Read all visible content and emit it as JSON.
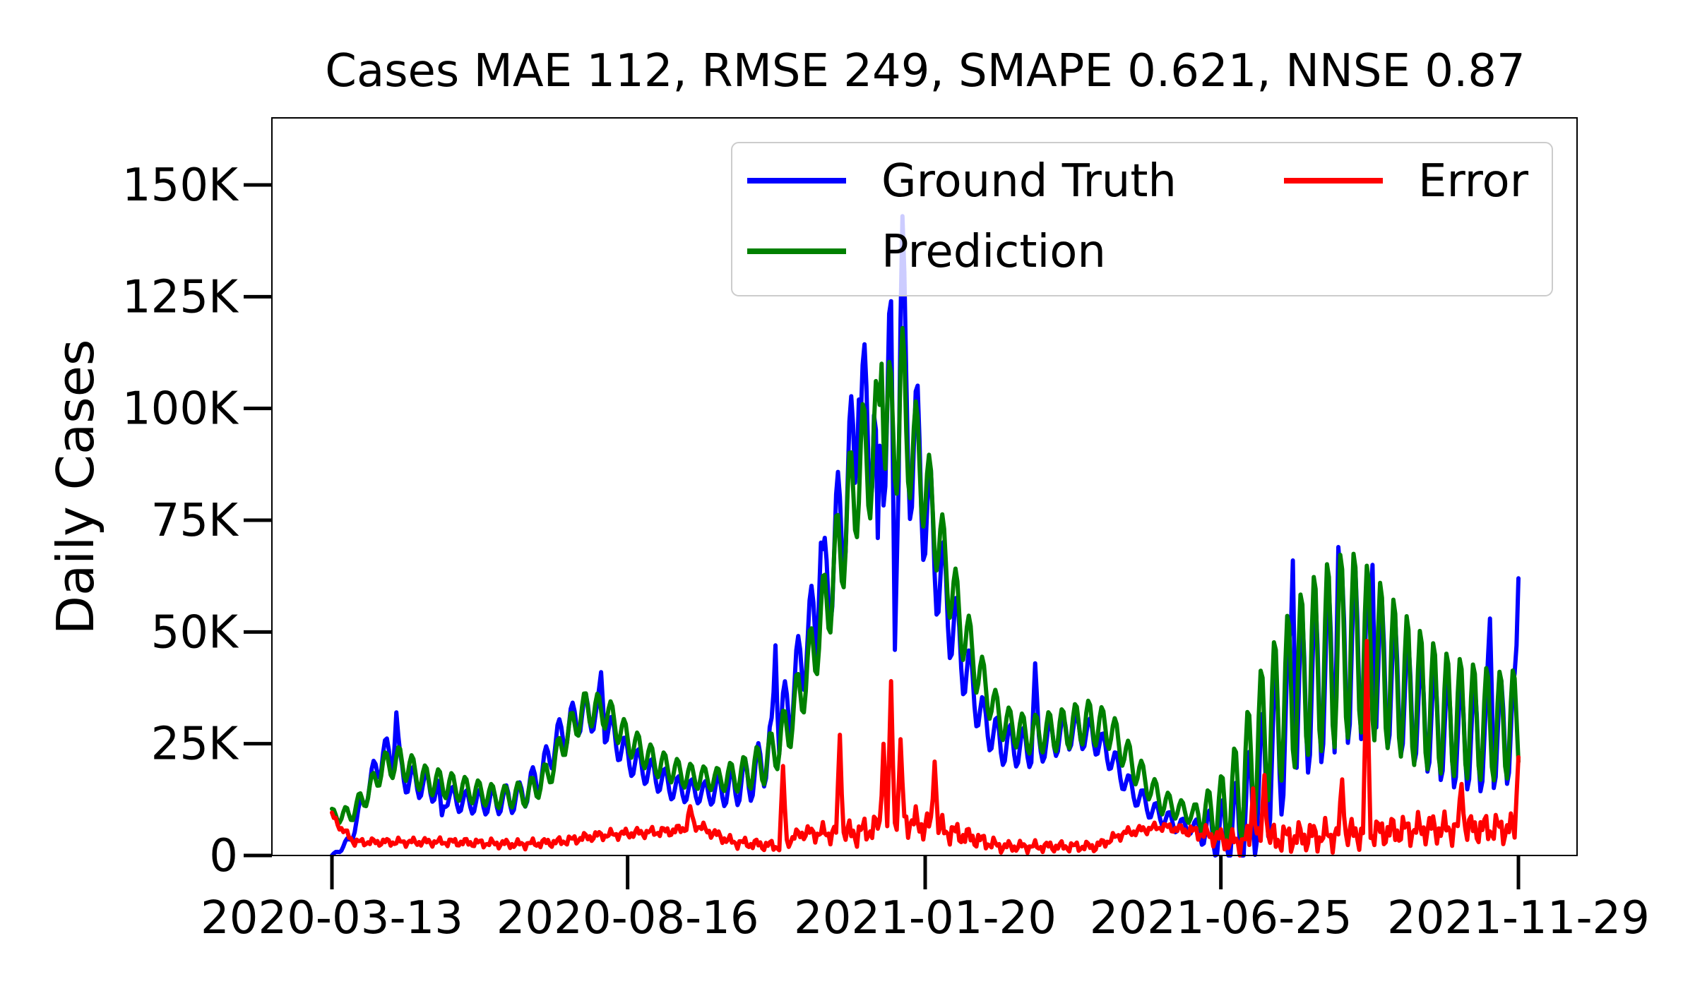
{
  "chart_data": {
    "type": "line",
    "title": "Cases MAE 112, RMSE 249, SMAPE 0.621, NNSE 0.87",
    "xlabel": "",
    "ylabel": "Daily Cases",
    "x_range": [
      "2020-03-13",
      "2021-11-29"
    ],
    "ylim": [
      0,
      165000
    ],
    "yticks": [
      0,
      25000,
      50000,
      75000,
      100000,
      125000,
      150000
    ],
    "ytick_labels": [
      "0",
      "25K",
      "50K",
      "75K",
      "100K",
      "125K",
      "150K"
    ],
    "xticks": [
      "2020-03-13",
      "2020-08-16",
      "2021-01-20",
      "2021-06-25",
      "2021-11-29"
    ],
    "grid": false,
    "legend_position": "upper right",
    "legend_columns": 2,
    "series": [
      {
        "name": "Ground Truth",
        "color": "#0000ff",
        "anchors": [
          [
            "2020-03-13",
            0
          ],
          [
            "2020-03-22",
            3000
          ],
          [
            "2020-04-01",
            15000
          ],
          [
            "2020-04-09",
            23000
          ],
          [
            "2020-04-15",
            21000
          ],
          [
            "2020-04-22",
            17000
          ],
          [
            "2020-05-05",
            15000
          ],
          [
            "2020-05-20",
            12000
          ],
          [
            "2020-06-05",
            12000
          ],
          [
            "2020-06-20",
            13000
          ],
          [
            "2020-07-01",
            18000
          ],
          [
            "2020-07-10",
            26000
          ],
          [
            "2020-07-20",
            31000
          ],
          [
            "2020-07-28",
            32000
          ],
          [
            "2020-08-05",
            29000
          ],
          [
            "2020-08-16",
            22000
          ],
          [
            "2020-08-30",
            18000
          ],
          [
            "2020-09-10",
            15000
          ],
          [
            "2020-09-25",
            14000
          ],
          [
            "2020-10-10",
            15000
          ],
          [
            "2020-10-22",
            18000
          ],
          [
            "2020-11-01",
            25000
          ],
          [
            "2020-11-10",
            35000
          ],
          [
            "2020-11-20",
            50000
          ],
          [
            "2020-11-30",
            62000
          ],
          [
            "2020-12-08",
            78000
          ],
          [
            "2020-12-15",
            93000
          ],
          [
            "2020-12-22",
            98000
          ],
          [
            "2020-12-30",
            100000
          ],
          [
            "2021-01-05",
            103000
          ],
          [
            "2021-01-10",
            98000
          ],
          [
            "2021-01-16",
            88000
          ],
          [
            "2021-01-22",
            75000
          ],
          [
            "2021-01-28",
            62000
          ],
          [
            "2021-02-05",
            50000
          ],
          [
            "2021-02-12",
            40000
          ],
          [
            "2021-02-20",
            30000
          ],
          [
            "2021-03-01",
            25000
          ],
          [
            "2021-03-15",
            24000
          ],
          [
            "2021-03-28",
            26000
          ],
          [
            "2021-04-08",
            28000
          ],
          [
            "2021-04-18",
            27000
          ],
          [
            "2021-04-28",
            22000
          ],
          [
            "2021-05-08",
            15000
          ],
          [
            "2021-05-20",
            10000
          ],
          [
            "2021-06-01",
            7000
          ],
          [
            "2021-06-10",
            6000
          ],
          [
            "2021-06-25",
            5000
          ],
          [
            "2021-07-05",
            7000
          ],
          [
            "2021-07-15",
            15000
          ],
          [
            "2021-07-25",
            25000
          ],
          [
            "2021-08-05",
            35000
          ],
          [
            "2021-08-18",
            40000
          ],
          [
            "2021-09-01",
            45000
          ],
          [
            "2021-09-10",
            44000
          ],
          [
            "2021-09-25",
            38000
          ],
          [
            "2021-10-10",
            31000
          ],
          [
            "2021-10-25",
            27000
          ],
          [
            "2021-11-10",
            26000
          ],
          [
            "2021-11-25",
            28000
          ],
          [
            "2021-11-29",
            30000
          ]
        ],
        "weekly_amplitude": [
          [
            "2020-03-13",
            0
          ],
          [
            "2020-04-09",
            4000
          ],
          [
            "2020-05-20",
            2500
          ],
          [
            "2020-07-25",
            4500
          ],
          [
            "2020-09-25",
            2500
          ],
          [
            "2020-11-20",
            9000
          ],
          [
            "2020-12-22",
            20000
          ],
          [
            "2021-01-05",
            24000
          ],
          [
            "2021-01-22",
            14000
          ],
          [
            "2021-02-20",
            5000
          ],
          [
            "2021-04-08",
            4000
          ],
          [
            "2021-06-10",
            1500
          ],
          [
            "2021-07-25",
            18000
          ],
          [
            "2021-09-01",
            20000
          ],
          [
            "2021-10-10",
            12000
          ],
          [
            "2021-11-29",
            12000
          ]
        ],
        "peaks": [
          [
            "2020-04-16",
            32000
          ],
          [
            "2020-08-02",
            41000
          ],
          [
            "2020-11-02",
            47000
          ],
          [
            "2020-11-26",
            70000
          ],
          [
            "2020-12-16",
            102000
          ],
          [
            "2021-01-02",
            124000
          ],
          [
            "2021-01-08",
            143000
          ],
          [
            "2021-03-19",
            43000
          ],
          [
            "2021-08-02",
            66000
          ],
          [
            "2021-08-26",
            69000
          ],
          [
            "2021-09-13",
            65000
          ],
          [
            "2021-11-14",
            53000
          ],
          [
            "2021-11-29",
            62000
          ]
        ],
        "dips": [
          [
            "2020-05-10",
            9000
          ],
          [
            "2020-12-26",
            71000
          ],
          [
            "2021-01-04",
            46000
          ]
        ]
      },
      {
        "name": "Prediction",
        "color": "#008000",
        "anchors": [
          [
            "2020-03-13",
            9000
          ],
          [
            "2020-03-22",
            9000
          ],
          [
            "2020-04-01",
            14000
          ],
          [
            "2020-04-09",
            20000
          ],
          [
            "2020-04-18",
            21000
          ],
          [
            "2020-05-01",
            17000
          ],
          [
            "2020-05-20",
            15000
          ],
          [
            "2020-06-10",
            13000
          ],
          [
            "2020-06-25",
            14000
          ],
          [
            "2020-07-05",
            18000
          ],
          [
            "2020-07-15",
            27000
          ],
          [
            "2020-07-25",
            33000
          ],
          [
            "2020-08-05",
            32000
          ],
          [
            "2020-08-16",
            26000
          ],
          [
            "2020-08-30",
            21000
          ],
          [
            "2020-09-15",
            18000
          ],
          [
            "2020-10-01",
            17000
          ],
          [
            "2020-10-15",
            18000
          ],
          [
            "2020-10-28",
            21000
          ],
          [
            "2020-11-08",
            28000
          ],
          [
            "2020-11-18",
            40000
          ],
          [
            "2020-11-28",
            55000
          ],
          [
            "2020-12-08",
            72000
          ],
          [
            "2020-12-15",
            85000
          ],
          [
            "2020-12-22",
            90000
          ],
          [
            "2021-01-01",
            95000
          ],
          [
            "2021-01-08",
            96000
          ],
          [
            "2021-01-15",
            90000
          ],
          [
            "2021-01-22",
            80000
          ],
          [
            "2021-01-30",
            66000
          ],
          [
            "2021-02-08",
            52000
          ],
          [
            "2021-02-18",
            40000
          ],
          [
            "2021-03-01",
            30000
          ],
          [
            "2021-03-15",
            27000
          ],
          [
            "2021-04-01",
            28000
          ],
          [
            "2021-04-15",
            30000
          ],
          [
            "2021-04-28",
            28000
          ],
          [
            "2021-05-10",
            20000
          ],
          [
            "2021-05-25",
            12000
          ],
          [
            "2021-06-10",
            9000
          ],
          [
            "2021-06-25",
            10000
          ],
          [
            "2021-07-05",
            15000
          ],
          [
            "2021-07-15",
            25000
          ],
          [
            "2021-07-28",
            35000
          ],
          [
            "2021-08-10",
            42000
          ],
          [
            "2021-08-25",
            46000
          ],
          [
            "2021-09-05",
            48000
          ],
          [
            "2021-09-20",
            42000
          ],
          [
            "2021-10-05",
            36000
          ],
          [
            "2021-10-20",
            32000
          ],
          [
            "2021-11-05",
            30000
          ],
          [
            "2021-11-20",
            29000
          ],
          [
            "2021-11-29",
            30000
          ]
        ],
        "weekly_amplitude": [
          [
            "2020-03-13",
            1500
          ],
          [
            "2020-04-18",
            3500
          ],
          [
            "2020-06-10",
            2500
          ],
          [
            "2020-07-25",
            4000
          ],
          [
            "2020-10-01",
            2500
          ],
          [
            "2020-11-18",
            7000
          ],
          [
            "2020-12-15",
            14000
          ],
          [
            "2021-01-01",
            16000
          ],
          [
            "2021-01-22",
            10000
          ],
          [
            "2021-03-01",
            4000
          ],
          [
            "2021-04-15",
            5000
          ],
          [
            "2021-06-10",
            2000
          ],
          [
            "2021-07-15",
            16000
          ],
          [
            "2021-08-25",
            22000
          ],
          [
            "2021-09-20",
            18000
          ],
          [
            "2021-10-20",
            14000
          ],
          [
            "2021-11-29",
            12000
          ]
        ],
        "peaks": [
          [
            "2021-01-08",
            118000
          ],
          [
            "2020-12-28",
            110000
          ]
        ],
        "dips": []
      },
      {
        "name": "Error",
        "color": "#ff0000",
        "anchors": [
          [
            "2020-03-13",
            9000
          ],
          [
            "2020-03-18",
            6000
          ],
          [
            "2020-03-25",
            3000
          ],
          [
            "2020-04-10",
            3000
          ],
          [
            "2020-05-15",
            3000
          ],
          [
            "2020-06-20",
            2500
          ],
          [
            "2020-07-10",
            3000
          ],
          [
            "2020-08-01",
            4500
          ],
          [
            "2020-08-20",
            5000
          ],
          [
            "2020-09-10",
            5500
          ],
          [
            "2020-09-20",
            7000
          ],
          [
            "2020-10-10",
            3000
          ],
          [
            "2020-11-05",
            2000
          ],
          [
            "2020-11-15",
            5000
          ],
          [
            "2020-12-15",
            5000
          ],
          [
            "2021-01-08",
            8000
          ],
          [
            "2021-02-05",
            5000
          ],
          [
            "2021-03-01",
            2000
          ],
          [
            "2021-04-01",
            2000
          ],
          [
            "2021-04-20",
            2000
          ],
          [
            "2021-05-05",
            5000
          ],
          [
            "2021-05-25",
            6500
          ],
          [
            "2021-06-15",
            5000
          ],
          [
            "2021-07-01",
            3000
          ],
          [
            "2021-08-01",
            4000
          ],
          [
            "2021-09-10",
            5000
          ],
          [
            "2021-10-10",
            6000
          ],
          [
            "2021-11-29",
            6000
          ]
        ],
        "weekly_amplitude": [
          [
            "2020-03-13",
            1000
          ],
          [
            "2020-11-10",
            1500
          ],
          [
            "2020-12-15",
            3500
          ],
          [
            "2021-01-20",
            4000
          ],
          [
            "2021-03-01",
            1500
          ],
          [
            "2021-06-01",
            1200
          ],
          [
            "2021-07-15",
            4000
          ],
          [
            "2021-11-29",
            4000
          ]
        ],
        "peaks": [
          [
            "2020-09-18",
            11000
          ],
          [
            "2020-11-06",
            20000
          ],
          [
            "2020-12-06",
            27000
          ],
          [
            "2020-12-29",
            25000
          ],
          [
            "2021-01-02",
            39000
          ],
          [
            "2021-01-07",
            26000
          ],
          [
            "2021-01-25",
            21000
          ],
          [
            "2021-07-12",
            15000
          ],
          [
            "2021-07-18",
            18000
          ],
          [
            "2021-08-28",
            17000
          ],
          [
            "2021-09-10",
            48000
          ],
          [
            "2021-10-30",
            16000
          ],
          [
            "2021-11-29",
            22000
          ]
        ],
        "dips": []
      }
    ]
  }
}
